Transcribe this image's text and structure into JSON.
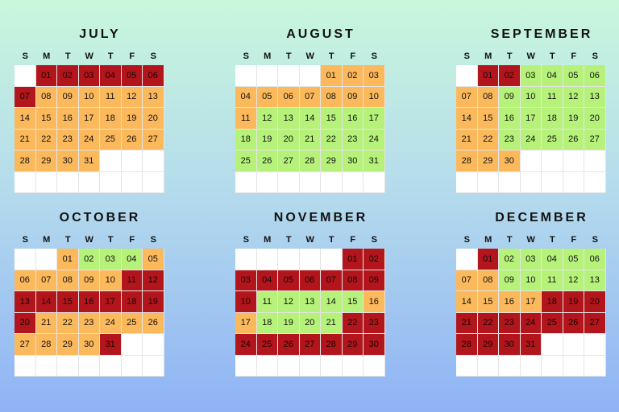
{
  "weekday_labels": [
    "S",
    "M",
    "T",
    "W",
    "T",
    "F",
    "S"
  ],
  "colors": {
    "red": "#b2151b",
    "orange": "#fcb95c",
    "green": "#b6f27a",
    "empty": "#ffffff"
  },
  "months": [
    {
      "name": "JULY",
      "days": [
        {
          "d": "01",
          "c": "red"
        },
        {
          "d": "02",
          "c": "red"
        },
        {
          "d": "03",
          "c": "red"
        },
        {
          "d": "04",
          "c": "red"
        },
        {
          "d": "05",
          "c": "red"
        },
        {
          "d": "06",
          "c": "red"
        },
        {
          "d": "07",
          "c": "red"
        },
        {
          "d": "08",
          "c": "orange"
        },
        {
          "d": "09",
          "c": "orange"
        },
        {
          "d": "10",
          "c": "orange"
        },
        {
          "d": "11",
          "c": "orange"
        },
        {
          "d": "12",
          "c": "orange"
        },
        {
          "d": "13",
          "c": "orange"
        },
        {
          "d": "14",
          "c": "orange"
        },
        {
          "d": "15",
          "c": "orange"
        },
        {
          "d": "16",
          "c": "orange"
        },
        {
          "d": "17",
          "c": "orange"
        },
        {
          "d": "18",
          "c": "orange"
        },
        {
          "d": "19",
          "c": "orange"
        },
        {
          "d": "20",
          "c": "orange"
        },
        {
          "d": "21",
          "c": "orange"
        },
        {
          "d": "22",
          "c": "orange"
        },
        {
          "d": "23",
          "c": "orange"
        },
        {
          "d": "24",
          "c": "orange"
        },
        {
          "d": "25",
          "c": "orange"
        },
        {
          "d": "26",
          "c": "orange"
        },
        {
          "d": "27",
          "c": "orange"
        },
        {
          "d": "28",
          "c": "orange"
        },
        {
          "d": "29",
          "c": "orange"
        },
        {
          "d": "30",
          "c": "orange"
        },
        {
          "d": "31",
          "c": "orange"
        }
      ]
    },
    {
      "name": "AUGUST",
      "days": [
        {
          "d": "01",
          "c": "orange"
        },
        {
          "d": "02",
          "c": "orange"
        },
        {
          "d": "03",
          "c": "orange"
        },
        {
          "d": "04",
          "c": "orange"
        },
        {
          "d": "05",
          "c": "orange"
        },
        {
          "d": "06",
          "c": "orange"
        },
        {
          "d": "07",
          "c": "orange"
        },
        {
          "d": "08",
          "c": "orange"
        },
        {
          "d": "09",
          "c": "orange"
        },
        {
          "d": "10",
          "c": "orange"
        },
        {
          "d": "11",
          "c": "orange"
        },
        {
          "d": "12",
          "c": "green"
        },
        {
          "d": "13",
          "c": "green"
        },
        {
          "d": "14",
          "c": "green"
        },
        {
          "d": "15",
          "c": "green"
        },
        {
          "d": "16",
          "c": "green"
        },
        {
          "d": "17",
          "c": "green"
        },
        {
          "d": "18",
          "c": "green"
        },
        {
          "d": "19",
          "c": "green"
        },
        {
          "d": "20",
          "c": "green"
        },
        {
          "d": "21",
          "c": "green"
        },
        {
          "d": "22",
          "c": "green"
        },
        {
          "d": "23",
          "c": "green"
        },
        {
          "d": "24",
          "c": "green"
        },
        {
          "d": "25",
          "c": "green"
        },
        {
          "d": "26",
          "c": "green"
        },
        {
          "d": "27",
          "c": "green"
        },
        {
          "d": "28",
          "c": "green"
        },
        {
          "d": "29",
          "c": "green"
        },
        {
          "d": "30",
          "c": "green"
        },
        {
          "d": "31",
          "c": "green"
        }
      ]
    },
    {
      "name": "SEPTEMBER",
      "days": [
        {
          "d": "01",
          "c": "red"
        },
        {
          "d": "02",
          "c": "red"
        },
        {
          "d": "03",
          "c": "green"
        },
        {
          "d": "04",
          "c": "green"
        },
        {
          "d": "05",
          "c": "green"
        },
        {
          "d": "06",
          "c": "green"
        },
        {
          "d": "07",
          "c": "orange"
        },
        {
          "d": "08",
          "c": "orange"
        },
        {
          "d": "09",
          "c": "green"
        },
        {
          "d": "10",
          "c": "green"
        },
        {
          "d": "11",
          "c": "green"
        },
        {
          "d": "12",
          "c": "green"
        },
        {
          "d": "13",
          "c": "green"
        },
        {
          "d": "14",
          "c": "orange"
        },
        {
          "d": "15",
          "c": "orange"
        },
        {
          "d": "16",
          "c": "green"
        },
        {
          "d": "17",
          "c": "green"
        },
        {
          "d": "18",
          "c": "green"
        },
        {
          "d": "19",
          "c": "green"
        },
        {
          "d": "20",
          "c": "green"
        },
        {
          "d": "21",
          "c": "orange"
        },
        {
          "d": "22",
          "c": "orange"
        },
        {
          "d": "23",
          "c": "green"
        },
        {
          "d": "24",
          "c": "green"
        },
        {
          "d": "25",
          "c": "green"
        },
        {
          "d": "26",
          "c": "green"
        },
        {
          "d": "27",
          "c": "green"
        },
        {
          "d": "28",
          "c": "orange"
        },
        {
          "d": "29",
          "c": "orange"
        },
        {
          "d": "30",
          "c": "orange"
        }
      ]
    },
    {
      "name": "OCTOBER",
      "days": [
        {
          "d": "01",
          "c": "orange"
        },
        {
          "d": "02",
          "c": "green"
        },
        {
          "d": "03",
          "c": "green"
        },
        {
          "d": "04",
          "c": "green"
        },
        {
          "d": "05",
          "c": "orange"
        },
        {
          "d": "06",
          "c": "orange"
        },
        {
          "d": "07",
          "c": "orange"
        },
        {
          "d": "08",
          "c": "orange"
        },
        {
          "d": "09",
          "c": "orange"
        },
        {
          "d": "10",
          "c": "orange"
        },
        {
          "d": "11",
          "c": "red"
        },
        {
          "d": "12",
          "c": "red"
        },
        {
          "d": "13",
          "c": "red"
        },
        {
          "d": "14",
          "c": "red"
        },
        {
          "d": "15",
          "c": "red"
        },
        {
          "d": "16",
          "c": "red"
        },
        {
          "d": "17",
          "c": "red"
        },
        {
          "d": "18",
          "c": "red"
        },
        {
          "d": "19",
          "c": "red"
        },
        {
          "d": "20",
          "c": "red"
        },
        {
          "d": "21",
          "c": "orange"
        },
        {
          "d": "22",
          "c": "orange"
        },
        {
          "d": "23",
          "c": "orange"
        },
        {
          "d": "24",
          "c": "orange"
        },
        {
          "d": "25",
          "c": "orange"
        },
        {
          "d": "26",
          "c": "orange"
        },
        {
          "d": "27",
          "c": "orange"
        },
        {
          "d": "28",
          "c": "orange"
        },
        {
          "d": "29",
          "c": "orange"
        },
        {
          "d": "30",
          "c": "orange"
        },
        {
          "d": "31",
          "c": "red"
        }
      ]
    },
    {
      "name": "NOVEMBER",
      "days": [
        {
          "d": "01",
          "c": "red"
        },
        {
          "d": "02",
          "c": "red"
        },
        {
          "d": "03",
          "c": "red"
        },
        {
          "d": "04",
          "c": "red"
        },
        {
          "d": "05",
          "c": "red"
        },
        {
          "d": "06",
          "c": "red"
        },
        {
          "d": "07",
          "c": "red"
        },
        {
          "d": "08",
          "c": "red"
        },
        {
          "d": "09",
          "c": "red"
        },
        {
          "d": "10",
          "c": "red"
        },
        {
          "d": "11",
          "c": "green"
        },
        {
          "d": "12",
          "c": "green"
        },
        {
          "d": "13",
          "c": "green"
        },
        {
          "d": "14",
          "c": "green"
        },
        {
          "d": "15",
          "c": "green"
        },
        {
          "d": "16",
          "c": "orange"
        },
        {
          "d": "17",
          "c": "orange"
        },
        {
          "d": "18",
          "c": "green"
        },
        {
          "d": "19",
          "c": "green"
        },
        {
          "d": "20",
          "c": "green"
        },
        {
          "d": "21",
          "c": "green"
        },
        {
          "d": "22",
          "c": "red"
        },
        {
          "d": "23",
          "c": "red"
        },
        {
          "d": "24",
          "c": "red"
        },
        {
          "d": "25",
          "c": "red"
        },
        {
          "d": "26",
          "c": "red"
        },
        {
          "d": "27",
          "c": "red"
        },
        {
          "d": "28",
          "c": "red"
        },
        {
          "d": "29",
          "c": "red"
        },
        {
          "d": "30",
          "c": "red"
        }
      ]
    },
    {
      "name": "DECEMBER",
      "days": [
        {
          "d": "01",
          "c": "red"
        },
        {
          "d": "02",
          "c": "green"
        },
        {
          "d": "03",
          "c": "green"
        },
        {
          "d": "04",
          "c": "green"
        },
        {
          "d": "05",
          "c": "green"
        },
        {
          "d": "06",
          "c": "green"
        },
        {
          "d": "07",
          "c": "orange"
        },
        {
          "d": "08",
          "c": "orange"
        },
        {
          "d": "09",
          "c": "green"
        },
        {
          "d": "10",
          "c": "green"
        },
        {
          "d": "11",
          "c": "green"
        },
        {
          "d": "12",
          "c": "green"
        },
        {
          "d": "13",
          "c": "green"
        },
        {
          "d": "14",
          "c": "orange"
        },
        {
          "d": "15",
          "c": "orange"
        },
        {
          "d": "16",
          "c": "orange"
        },
        {
          "d": "17",
          "c": "orange"
        },
        {
          "d": "18",
          "c": "red"
        },
        {
          "d": "19",
          "c": "red"
        },
        {
          "d": "20",
          "c": "red"
        },
        {
          "d": "21",
          "c": "red"
        },
        {
          "d": "22",
          "c": "red"
        },
        {
          "d": "23",
          "c": "red"
        },
        {
          "d": "24",
          "c": "red"
        },
        {
          "d": "25",
          "c": "red"
        },
        {
          "d": "26",
          "c": "red"
        },
        {
          "d": "27",
          "c": "red"
        },
        {
          "d": "28",
          "c": "red"
        },
        {
          "d": "29",
          "c": "red"
        },
        {
          "d": "30",
          "c": "red"
        },
        {
          "d": "31",
          "c": "red"
        }
      ]
    }
  ]
}
